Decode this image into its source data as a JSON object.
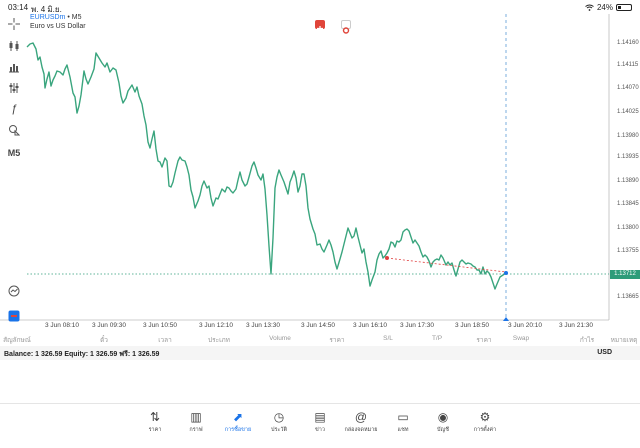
{
  "status_bar": {
    "time": "03:14",
    "date": "พ. 4 มิ.ย.",
    "battery": "24%"
  },
  "chart": {
    "symbol": "EURUSDm",
    "symbol_sep": "•",
    "timeframe": "M5",
    "description": "Euro vs US Dollar",
    "current_price": "1.13712",
    "price_labels": [
      "1.14160",
      "1.14115",
      "1.14070",
      "1.14025",
      "1.13980",
      "1.13935",
      "1.13890",
      "1.13845",
      "1.13800",
      "1.13755",
      "1.13665"
    ],
    "time_labels": [
      "3 Jun 08:10",
      "3 Jun 09:30",
      "3 Jun 10:50",
      "3 Jun 12:10",
      "3 Jun 13:30",
      "3 Jun 14:50",
      "3 Jun 16:10",
      "3 Jun 17:30",
      "3 Jun 18:50",
      "3 Jun 20:10",
      "3 Jun 21:30"
    ],
    "line_color": "#3aa57e",
    "current_line_color": "#2d9c79",
    "crosshair_color": "#5b9bd5",
    "trend_line_color": "#e04040"
  },
  "left_toolbar": {
    "timeframe_button": "M5"
  },
  "columns": [
    "สัญลักษณ์",
    "ตั๋ว",
    "เวลา",
    "ประเภท",
    "Volume",
    "ราคา",
    "S/L",
    "T/P",
    "ราคา",
    "Swap",
    "กำไร",
    "หมายเหตุ"
  ],
  "balance_bar": {
    "text": "Balance: 1 326.59 Equity: 1 326.59 ฟรี: 1 326.59",
    "currency": "USD"
  },
  "tabs": [
    {
      "label": "ราคา",
      "icon": "quotes-icon"
    },
    {
      "label": "กราฟ",
      "icon": "chart-icon"
    },
    {
      "label": "การซื้อขาย",
      "icon": "trade-icon",
      "active": true
    },
    {
      "label": "ประวัติ",
      "icon": "history-icon"
    },
    {
      "label": "ข่าว",
      "icon": "news-icon"
    },
    {
      "label": "กล่องจดหมาย",
      "icon": "mailbox-icon"
    },
    {
      "label": "แชท",
      "icon": "chat-icon"
    },
    {
      "label": "บัญชี",
      "icon": "account-icon"
    },
    {
      "label": "การตั้งค่า",
      "icon": "settings-icon"
    }
  ]
}
